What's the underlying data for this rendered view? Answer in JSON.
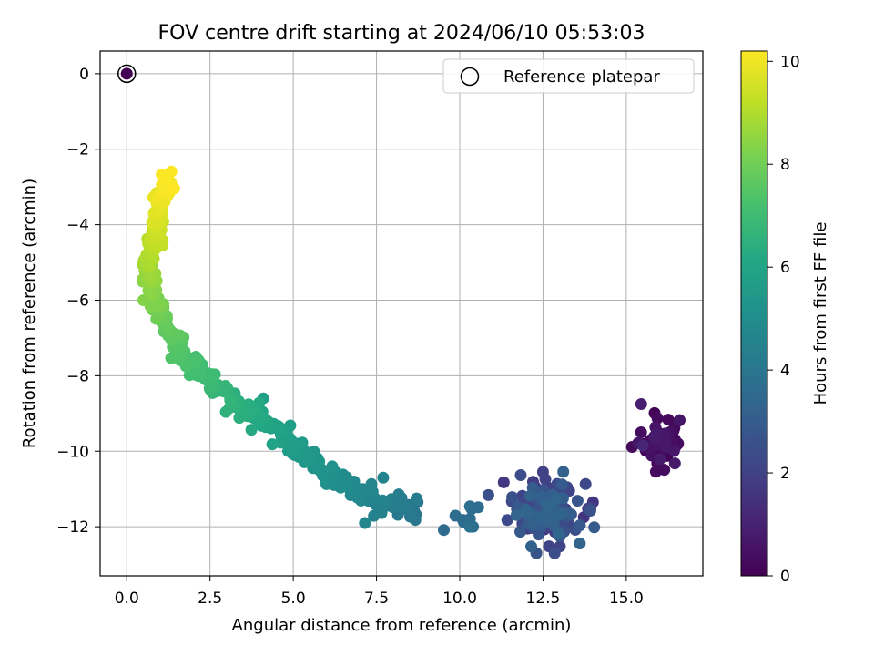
{
  "chart_data": {
    "type": "scatter",
    "title": "FOV centre drift starting at 2024/06/10 05:53:03",
    "xlabel": "Angular distance from reference (arcmin)",
    "ylabel": "Rotation from reference (arcmin)",
    "xlim": [
      -0.8,
      17.3
    ],
    "ylim": [
      -13.3,
      0.6
    ],
    "xticks": [
      0.0,
      2.5,
      5.0,
      7.5,
      10.0,
      12.5,
      15.0
    ],
    "xtick_labels": [
      "0.0",
      "2.5",
      "5.0",
      "7.5",
      "10.0",
      "12.5",
      "15.0"
    ],
    "yticks": [
      0,
      -2,
      -4,
      -6,
      -8,
      -10,
      -12
    ],
    "ytick_labels": [
      "0",
      "−2",
      "−4",
      "−6",
      "−8",
      "−10",
      "−12"
    ],
    "grid": true,
    "colormap": "viridis",
    "colorbar": {
      "label": "Hours from first FF file",
      "range": [
        0,
        10.2
      ],
      "ticks": [
        0,
        2,
        4,
        6,
        8,
        10
      ],
      "tick_labels": [
        "0",
        "2",
        "4",
        "6",
        "8",
        "10"
      ]
    },
    "legend": {
      "placement": "top-right",
      "label": "Reference platepar"
    },
    "reference_point": {
      "x": 0.0,
      "y": 0.0,
      "c": 0.0
    },
    "cluster_descriptions_note": "",
    "clusters": [
      {
        "cx": 16.0,
        "cy": -9.7,
        "sx": 0.4,
        "sy": 0.35,
        "c0": 0.0,
        "c1": 0.8,
        "n": 45
      },
      {
        "cx": 12.6,
        "cy": -11.6,
        "sx": 0.5,
        "sy": 0.38,
        "c0": 1.5,
        "c1": 3.4,
        "n": 160
      },
      {
        "cx": 10.2,
        "cy": -11.7,
        "sx": 0.2,
        "sy": 0.25,
        "c0": 3.5,
        "c1": 3.9,
        "n": 8
      }
    ],
    "path": [
      {
        "x": 8.7,
        "y": -11.55,
        "c": 4.0
      },
      {
        "x": 7.5,
        "y": -11.3,
        "c": 4.5
      },
      {
        "x": 6.3,
        "y": -10.8,
        "c": 5.0
      },
      {
        "x": 5.2,
        "y": -10.0,
        "c": 5.5
      },
      {
        "x": 4.4,
        "y": -9.4,
        "c": 5.9
      },
      {
        "x": 3.5,
        "y": -8.9,
        "c": 6.4
      },
      {
        "x": 2.5,
        "y": -8.1,
        "c": 6.9
      },
      {
        "x": 1.7,
        "y": -7.5,
        "c": 7.3
      },
      {
        "x": 1.2,
        "y": -6.7,
        "c": 7.7
      },
      {
        "x": 0.8,
        "y": -6.0,
        "c": 8.2
      },
      {
        "x": 0.6,
        "y": -5.2,
        "c": 8.7
      },
      {
        "x": 0.9,
        "y": -4.3,
        "c": 9.3
      },
      {
        "x": 1.0,
        "y": -3.5,
        "c": 9.8
      },
      {
        "x": 1.2,
        "y": -2.8,
        "c": 10.2
      }
    ],
    "path_points": 420,
    "outliers": [
      {
        "x": 15.45,
        "y": -8.75,
        "c": 0.9
      },
      {
        "x": 12.5,
        "y": -10.55,
        "c": 2.0
      },
      {
        "x": 12.85,
        "y": -12.7,
        "c": 2.4
      },
      {
        "x": 12.3,
        "y": -12.7,
        "c": 2.6
      },
      {
        "x": 14.0,
        "y": -11.35,
        "c": 1.6
      },
      {
        "x": 15.5,
        "y": -9.85,
        "c": 1.1
      },
      {
        "x": 4.1,
        "y": -8.6,
        "c": 5.8
      },
      {
        "x": 7.15,
        "y": -11.9,
        "c": 4.7
      },
      {
        "x": 7.7,
        "y": -10.7,
        "c": 4.6
      },
      {
        "x": 8.7,
        "y": -11.25,
        "c": 4.3
      },
      {
        "x": 10.3,
        "y": -12.0,
        "c": 3.8
      },
      {
        "x": 10.4,
        "y": -12.0,
        "c": 3.7
      },
      {
        "x": 0.5,
        "y": -6.0,
        "c": 8.3
      }
    ]
  }
}
